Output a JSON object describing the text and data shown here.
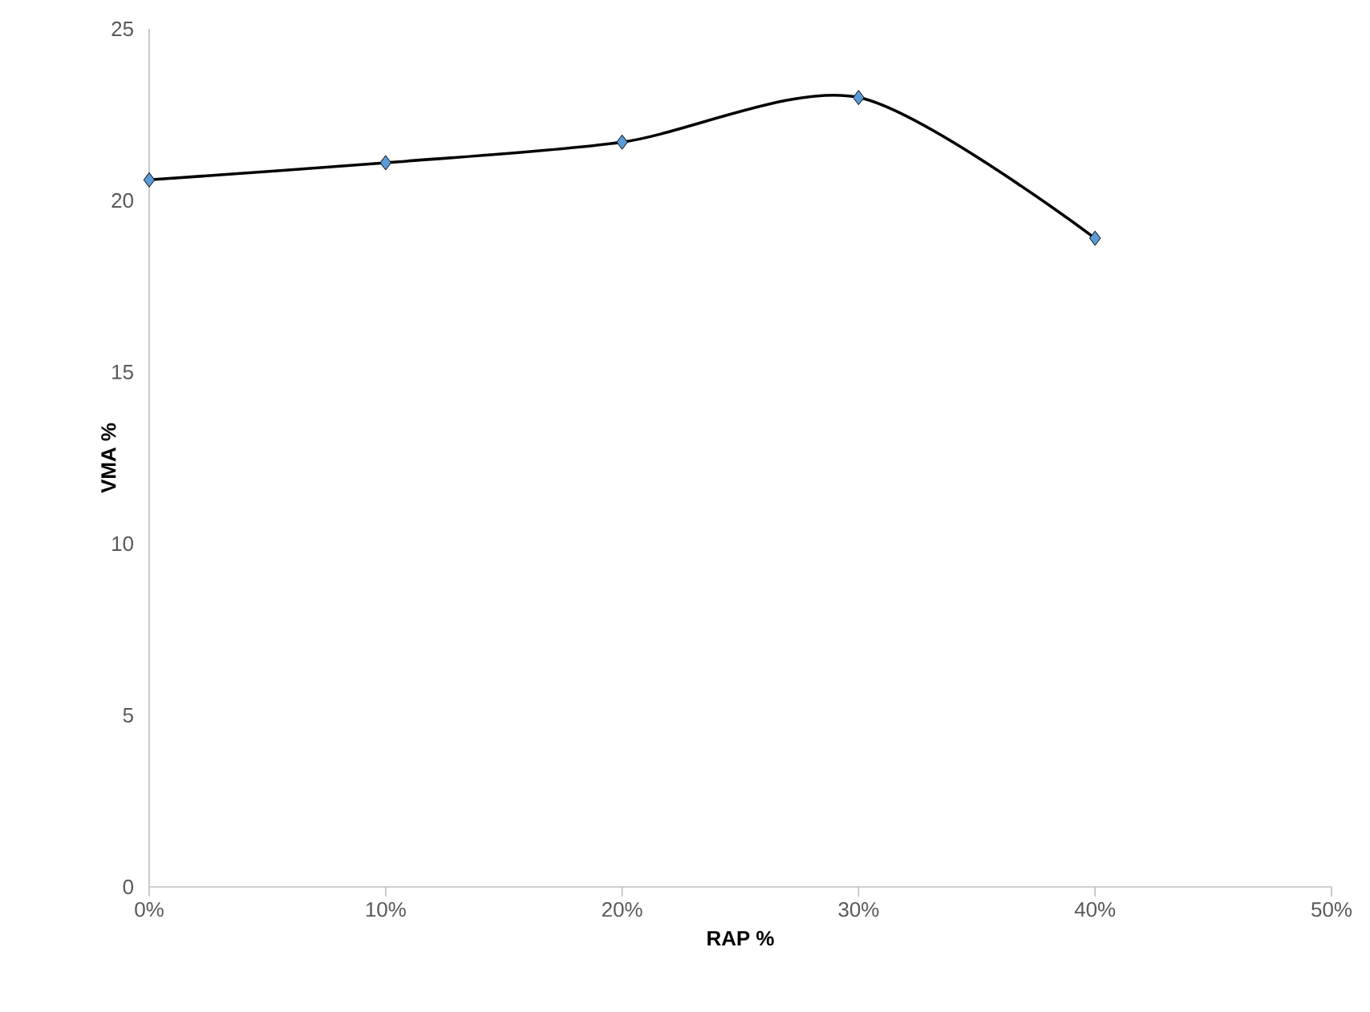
{
  "chart_data": {
    "type": "line",
    "xlabel": "RAP %",
    "ylabel": "VMA %",
    "x": [
      0,
      10,
      20,
      30,
      40
    ],
    "series": [
      {
        "color": "#000000",
        "colors": [
          "#5b9bd5",
          "#5b9bd5",
          "#5b9bd5",
          "#5b9bd5",
          "#5b9bd5"
        ],
        "values": [
          20.6,
          21.1,
          21.7,
          23.0,
          18.9
        ]
      }
    ],
    "xlim": [
      0,
      50
    ],
    "ylim": [
      0,
      25
    ],
    "xticks": [
      {
        "value": 0,
        "label": "0%"
      },
      {
        "value": 10,
        "label": "10%"
      },
      {
        "value": 20,
        "label": "20%"
      },
      {
        "value": 30,
        "label": "30%"
      },
      {
        "value": 40,
        "label": "40%"
      },
      {
        "value": 50,
        "label": "50%"
      }
    ],
    "yticks": [
      0,
      5,
      10,
      15,
      20,
      25
    ],
    "grid": false,
    "legend": false,
    "marker": "diamond",
    "line_style": "solid"
  }
}
